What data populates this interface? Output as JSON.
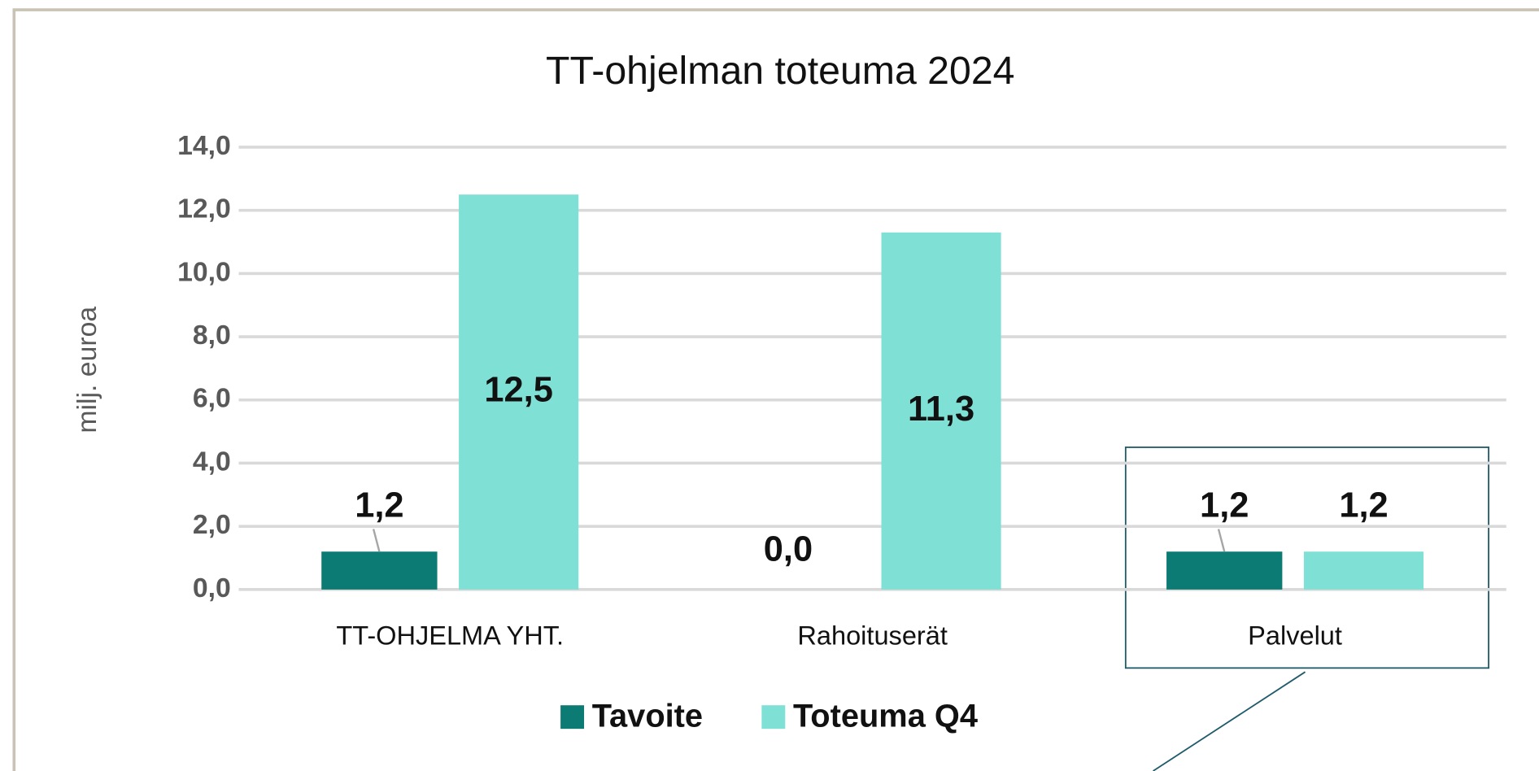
{
  "chart_data": {
    "type": "bar",
    "title": "TT-ohjelman toteuma 2024",
    "y_label": "milj. euroa",
    "categories": [
      "TT-OHJELMA YHT.",
      "Rahoituserät",
      "Palvelut"
    ],
    "series": [
      {
        "name": "Tavoite",
        "color": "#0b7b73",
        "values": [
          1.2,
          0.0,
          1.2
        ],
        "value_labels": [
          "1,2",
          "0,0",
          "1,2"
        ]
      },
      {
        "name": "Toteuma Q4",
        "color": "#7fe0d5",
        "values": [
          12.5,
          11.3,
          1.2
        ],
        "value_labels": [
          "12,5",
          "11,3",
          "1,2"
        ]
      }
    ],
    "ylim": [
      0,
      14
    ],
    "yticks": [
      {
        "value": 0,
        "label": "0,0"
      },
      {
        "value": 2,
        "label": "2,0"
      },
      {
        "value": 4,
        "label": "4,0"
      },
      {
        "value": 6,
        "label": "6,0"
      },
      {
        "value": 8,
        "label": "8,0"
      },
      {
        "value": 10,
        "label": "10,0"
      },
      {
        "value": 12,
        "label": "12,0"
      },
      {
        "value": 14,
        "label": "14,0"
      }
    ],
    "grid": true,
    "legend": "bottom"
  }
}
